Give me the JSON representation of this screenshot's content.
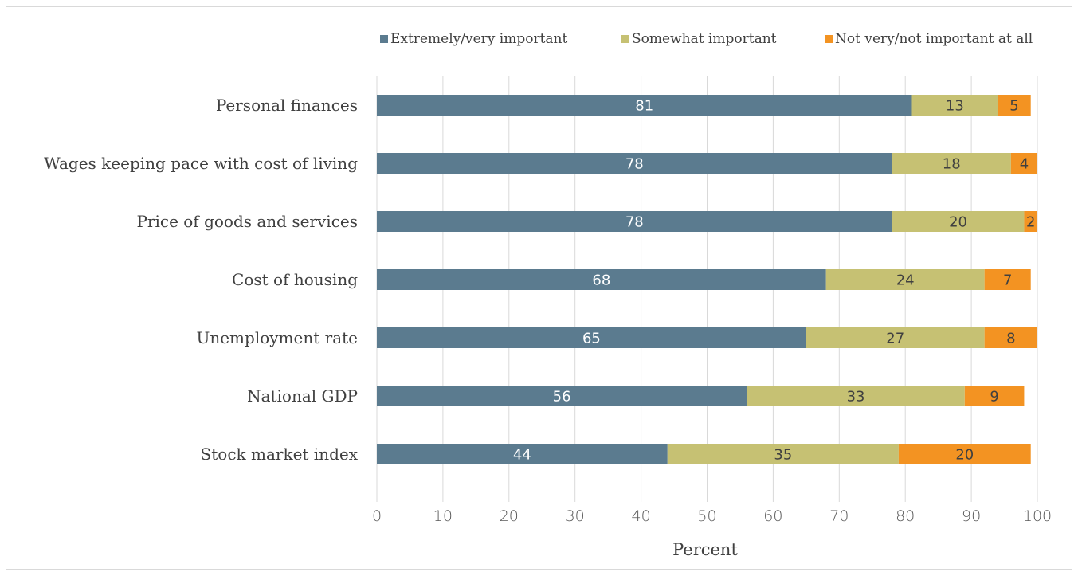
{
  "chart_data": {
    "type": "bar",
    "orientation": "horizontal",
    "stacked": true,
    "categories": [
      "Personal finances",
      "Wages keeping pace with cost of living",
      "Price of goods and services",
      "Cost of housing",
      "Unemployment rate",
      "National GDP",
      "Stock market index"
    ],
    "series": [
      {
        "name": "Extremely/very important",
        "color": "#5b7b8f",
        "label_color": "#ffffff",
        "values": [
          81,
          78,
          78,
          68,
          65,
          56,
          44
        ]
      },
      {
        "name": "Somewhat important",
        "color": "#c6c173",
        "label_color": "#404040",
        "values": [
          13,
          18,
          20,
          24,
          27,
          33,
          35
        ]
      },
      {
        "name": "Not very/not important at all",
        "color": "#f39322",
        "label_color": "#404040",
        "values": [
          5,
          4,
          2,
          7,
          8,
          9,
          20
        ]
      }
    ],
    "xlabel": "Percent",
    "ylabel": "",
    "xlim": [
      0,
      100
    ],
    "xticks": [
      0,
      10,
      20,
      30,
      40,
      50,
      60,
      70,
      80,
      90,
      100
    ],
    "grid": true,
    "legend_position": "top-right"
  }
}
